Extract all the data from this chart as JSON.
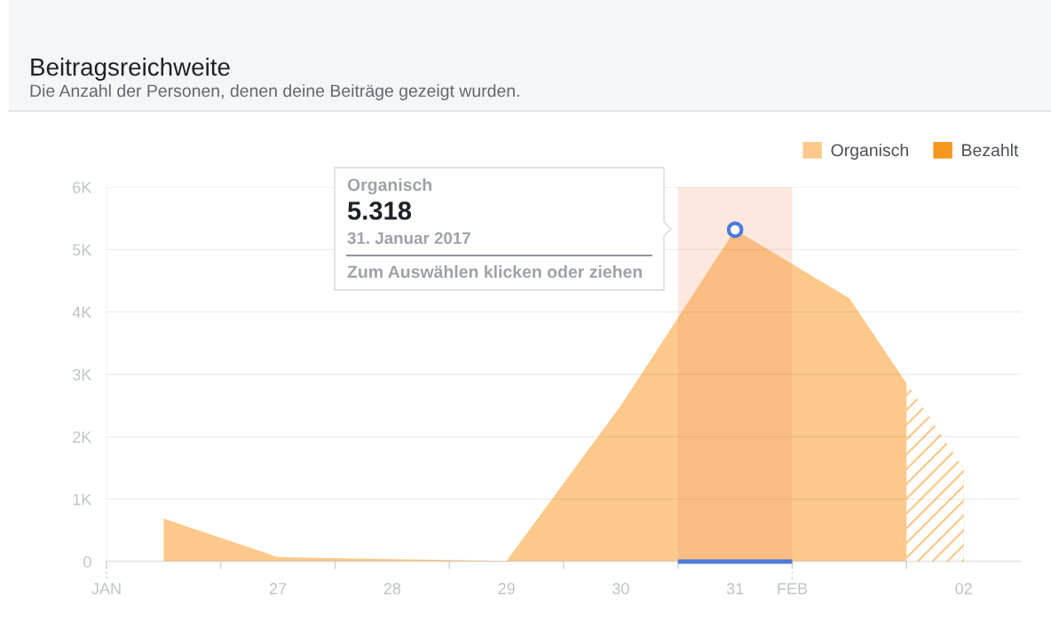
{
  "chart_data": {
    "type": "area",
    "title": "Beitragsreichweite",
    "subtitle": "Die Anzahl der Personen, denen deine Beiträge gezeigt wurden.",
    "x": [
      "2017-01-26T12:00",
      "2017-01-27T12:00",
      "2017-01-28T12:00",
      "2017-01-29T12:00",
      "2017-01-30T12:00",
      "2017-01-31T12:00",
      "2017-02-01T12:00",
      "2017-02-02T12:00"
    ],
    "series": [
      {
        "name": "Organisch",
        "color": "#fcc98a",
        "values": [
          690,
          70,
          40,
          10,
          2500,
          5318,
          4220,
          1490
        ]
      },
      {
        "name": "Bezahlt",
        "color": "#f5971f",
        "values": [
          null,
          null,
          null,
          null,
          null,
          null,
          null,
          null
        ]
      },
      {
        "type": "area",
        "x": [
          "2017-02-02",
          "2017-02-02T12:00"
        ],
        "color": "#fcc98a",
        "values": [
          2860,
          1490
        ],
        "line_style": "dashed"
      },
      {
        "type": "line",
        "x": [
          "2017-01-31",
          "2017-02-01"
        ],
        "color": "#4e7ad8",
        "values": [
          0,
          0
        ]
      },
      {
        "type": "scatter",
        "x": [
          "2017-01-31T12:00"
        ],
        "color": "#4e7ad8",
        "values": [
          5318
        ],
        "marker": "circle"
      }
    ],
    "xlim": [
      "2017-01-26",
      "2017-02-03"
    ],
    "xticks": [
      {
        "value": "2017-01-26",
        "label": null
      },
      {
        "value": "2017-01-27",
        "label": null
      },
      {
        "value": "2017-01-28",
        "label": null
      },
      {
        "value": "2017-01-29",
        "label": null
      },
      {
        "value": "2017-01-30",
        "label": null
      },
      {
        "value": "2017-01-31",
        "label": null
      },
      {
        "value": "2017-02-01",
        "label": null
      },
      {
        "value": "2017-02-02",
        "label": null
      },
      {
        "value": "2017-01-26",
        "label": "JAN"
      },
      {
        "value": "2017-01-27T12:00",
        "label": "27"
      },
      {
        "value": "2017-01-28T12:00",
        "label": "28"
      },
      {
        "value": "2017-01-29T12:00",
        "label": "29"
      },
      {
        "value": "2017-01-30T12:00",
        "label": "30"
      },
      {
        "value": "2017-01-31T12:00",
        "label": "31"
      },
      {
        "value": "2017-02-01",
        "label": "FEB"
      },
      {
        "value": "2017-02-02T12:00",
        "label": "02"
      }
    ],
    "ylim": [
      0,
      6000
    ],
    "yticks": [
      0,
      {
        "value": 1000,
        "label": "1K"
      },
      {
        "value": 2000,
        "label": "2K"
      },
      {
        "value": 3000,
        "label": "3K"
      },
      {
        "value": 4000,
        "label": "4K"
      },
      {
        "value": 5000,
        "label": "5K"
      },
      {
        "value": 6000,
        "label": "6K"
      }
    ],
    "grid": "y",
    "legend": "top right",
    "bands": [
      {
        "axis": "x",
        "from": "2017-01-31",
        "to": "2017-02-01",
        "color": "#f08a5d"
      }
    ],
    "annotations": [
      "Organisch",
      "5.318",
      "31. Januar 2017",
      "Zum Auswählen klicken oder ziehen"
    ]
  }
}
